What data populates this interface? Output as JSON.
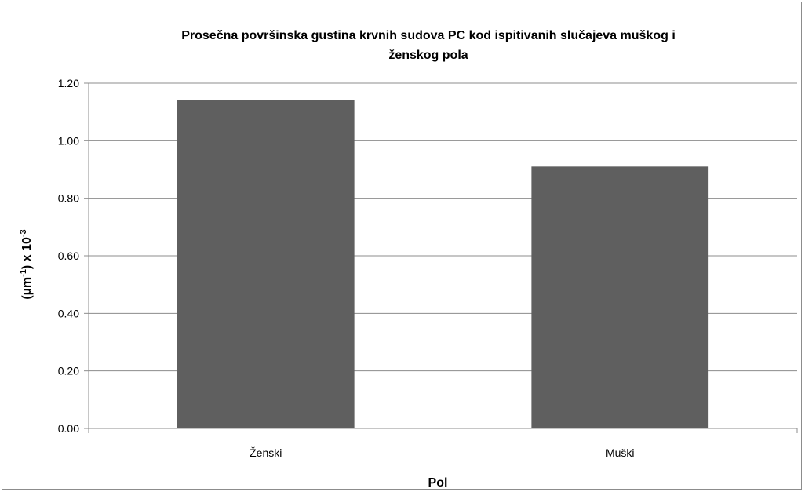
{
  "chart_data": {
    "type": "bar",
    "title_lines": [
      "Prosečna površinska gustina krvnih sudova PC kod ispitivanih slučajeva muškog i",
      "ženskog pola"
    ],
    "categories": [
      "Ženski",
      "Muški"
    ],
    "values": [
      1.14,
      0.91
    ],
    "xlabel": "Pol",
    "ylabel_parts": [
      "(µm",
      "-1",
      ") x 10",
      "-3"
    ],
    "ylim": [
      0,
      1.2
    ],
    "yticks": [
      "0.00",
      "0.20",
      "0.40",
      "0.60",
      "0.80",
      "1.00",
      "1.20"
    ],
    "ytick_values": [
      0,
      0.2,
      0.4,
      0.6,
      0.8,
      1.0,
      1.2
    ],
    "grid": true,
    "legend": "none",
    "bar_color": "#5f5f5f"
  }
}
